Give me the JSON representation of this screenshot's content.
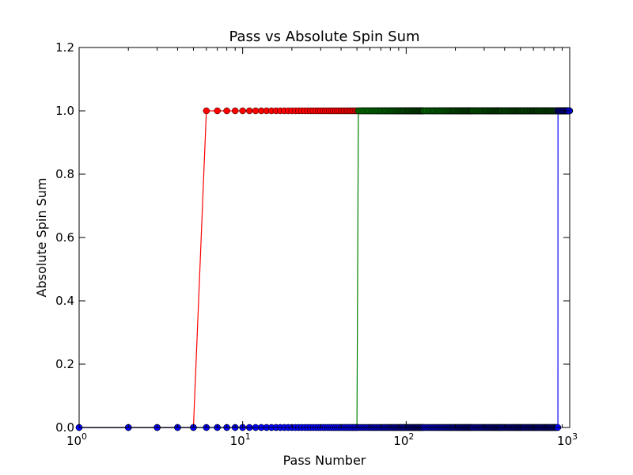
{
  "chart_data": {
    "type": "line",
    "title": "Pass vs Absolute Spin Sum",
    "xlabel": "Pass Number",
    "ylabel": "Absolute Spin Sum",
    "xscale": "log",
    "xlim": [
      1,
      1000
    ],
    "ylim": [
      0.0,
      1.2
    ],
    "grid": false,
    "x_ticks": [
      {
        "value": 1,
        "base": "10",
        "exp": "0"
      },
      {
        "value": 10,
        "base": "10",
        "exp": "1"
      },
      {
        "value": 100,
        "base": "10",
        "exp": "2"
      },
      {
        "value": 1000,
        "base": "10",
        "exp": "3"
      }
    ],
    "y_ticks": [
      "0.0",
      "0.2",
      "0.4",
      "0.6",
      "0.8",
      "1.0",
      "1.2"
    ],
    "series": [
      {
        "color": "#ff0000",
        "x_max": 1000,
        "jump_from": 5,
        "jump_to": 6
      },
      {
        "color": "#008000",
        "x_max": 1000,
        "jump_from": 50,
        "jump_to": 51
      },
      {
        "color": "#0000ff",
        "x_max": 1000,
        "jump_from": 847,
        "jump_to": 848
      }
    ],
    "marker": "circle",
    "marker_edge_color": "#000000"
  }
}
